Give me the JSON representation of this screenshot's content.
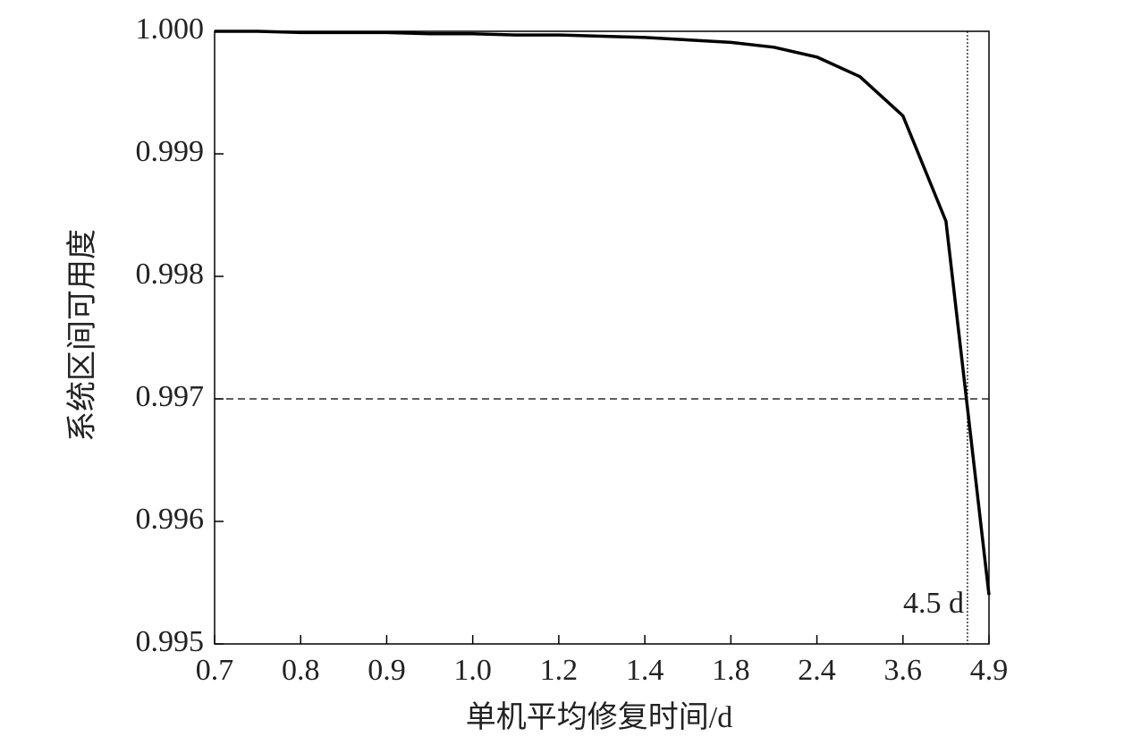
{
  "chart_data": {
    "type": "line",
    "x_label": "单机平均修复时间/d",
    "y_label": "系统区间可用度",
    "categories": [
      "0.7",
      null,
      "0.8",
      null,
      "0.9",
      null,
      "1.0",
      null,
      "1.2",
      null,
      "1.4",
      null,
      "1.8",
      null,
      "2.4",
      null,
      "3.6",
      null,
      "4.9"
    ],
    "series": [
      {
        "color": "#000000",
        "values": [
          1.0,
          1.0,
          0.99999,
          0.99999,
          0.99999,
          0.99998,
          0.99998,
          0.99997,
          0.99997,
          0.99996,
          0.99995,
          0.99993,
          0.99991,
          0.99987,
          0.99979,
          0.99963,
          0.99931,
          0.99845,
          0.9954
        ]
      }
    ],
    "ylim": [
      0.995,
      1.0
    ],
    "yticks": [
      {
        "value": 0.995,
        "label": "0.995"
      },
      {
        "value": 0.996,
        "label": "0.996"
      },
      {
        "value": 0.997,
        "label": "0.997"
      },
      {
        "value": 0.998,
        "label": "0.998"
      },
      {
        "value": 0.999,
        "label": "0.999"
      },
      {
        "value": 1.0,
        "label": "1.000"
      }
    ],
    "hline": {
      "value": 0.997
    },
    "reference_x": {
      "index": 17.5,
      "label": "4.5 d"
    }
  }
}
